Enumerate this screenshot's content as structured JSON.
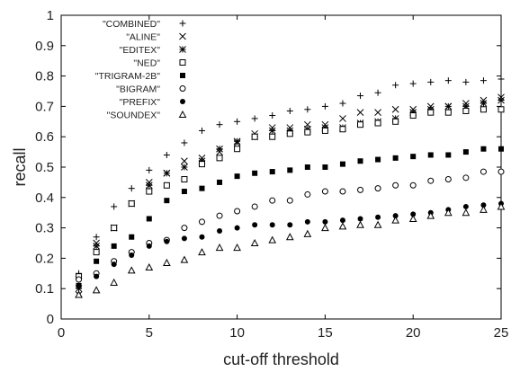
{
  "chart_data": {
    "type": "scatter",
    "xlabel": "cut-off threshold",
    "ylabel": "recall",
    "xlim": [
      0,
      25
    ],
    "ylim": [
      0,
      1
    ],
    "xticks": [
      0,
      5,
      10,
      15,
      20,
      25
    ],
    "yticks": [
      0,
      0.1,
      0.2,
      0.3,
      0.4,
      0.5,
      0.6,
      0.7,
      0.8,
      0.9,
      1
    ],
    "grid": false,
    "legend_position": "top-left",
    "x": [
      1,
      2,
      3,
      4,
      5,
      6,
      7,
      8,
      9,
      10,
      11,
      12,
      13,
      14,
      15,
      16,
      17,
      18,
      19,
      20,
      21,
      22,
      23,
      24,
      25
    ],
    "series": [
      {
        "name": "\"COMBINED\"",
        "marker": "plus",
        "values": [
          0.15,
          0.27,
          0.37,
          0.43,
          0.49,
          0.54,
          0.58,
          0.62,
          0.64,
          0.65,
          0.66,
          0.67,
          0.685,
          0.69,
          0.7,
          0.71,
          0.735,
          0.745,
          0.77,
          0.775,
          0.78,
          0.785,
          0.78,
          0.785,
          0.79
        ]
      },
      {
        "name": "\"ALINE\"",
        "marker": "x",
        "values": [
          0.08,
          0.25,
          0.3,
          0.38,
          0.45,
          0.48,
          0.52,
          0.53,
          0.55,
          0.58,
          0.61,
          0.63,
          0.63,
          0.64,
          0.64,
          0.66,
          0.68,
          0.68,
          0.69,
          0.69,
          0.7,
          0.7,
          0.71,
          0.72,
          0.73
        ]
      },
      {
        "name": "\"EDITEX\"",
        "marker": "star",
        "values": [
          0.1,
          0.24,
          0.3,
          0.38,
          0.44,
          0.48,
          0.5,
          0.52,
          0.56,
          0.585,
          0.6,
          0.62,
          0.62,
          0.625,
          0.63,
          0.63,
          0.645,
          0.65,
          0.66,
          0.68,
          0.69,
          0.7,
          0.7,
          0.71,
          0.72
        ]
      },
      {
        "name": "\"NED\"",
        "marker": "square-open",
        "values": [
          0.14,
          0.22,
          0.3,
          0.38,
          0.42,
          0.44,
          0.46,
          0.51,
          0.53,
          0.56,
          0.6,
          0.6,
          0.61,
          0.615,
          0.62,
          0.625,
          0.64,
          0.645,
          0.65,
          0.67,
          0.68,
          0.68,
          0.685,
          0.69,
          0.69
        ]
      },
      {
        "name": "\"TRIGRAM-2B\"",
        "marker": "square-filled",
        "values": [
          0.11,
          0.19,
          0.24,
          0.27,
          0.33,
          0.39,
          0.42,
          0.43,
          0.45,
          0.47,
          0.48,
          0.485,
          0.49,
          0.5,
          0.5,
          0.51,
          0.52,
          0.525,
          0.53,
          0.535,
          0.54,
          0.54,
          0.55,
          0.56,
          0.56
        ]
      },
      {
        "name": "\"BIGRAM\"",
        "marker": "circle-open",
        "values": [
          0.13,
          0.15,
          0.19,
          0.22,
          0.25,
          0.26,
          0.3,
          0.32,
          0.34,
          0.355,
          0.37,
          0.39,
          0.39,
          0.41,
          0.42,
          0.42,
          0.425,
          0.43,
          0.44,
          0.44,
          0.455,
          0.46,
          0.465,
          0.485,
          0.485
        ]
      },
      {
        "name": "\"PREFIX\"",
        "marker": "circle-filled",
        "values": [
          0.11,
          0.14,
          0.18,
          0.21,
          0.24,
          0.255,
          0.265,
          0.27,
          0.29,
          0.3,
          0.31,
          0.31,
          0.31,
          0.32,
          0.32,
          0.325,
          0.33,
          0.335,
          0.34,
          0.345,
          0.35,
          0.36,
          0.37,
          0.375,
          0.38
        ]
      },
      {
        "name": "\"SOUNDEX\"",
        "marker": "triangle-open",
        "values": [
          0.08,
          0.095,
          0.12,
          0.16,
          0.17,
          0.185,
          0.195,
          0.22,
          0.235,
          0.235,
          0.25,
          0.26,
          0.27,
          0.28,
          0.3,
          0.305,
          0.31,
          0.31,
          0.325,
          0.33,
          0.34,
          0.35,
          0.35,
          0.36,
          0.37
        ]
      }
    ]
  }
}
